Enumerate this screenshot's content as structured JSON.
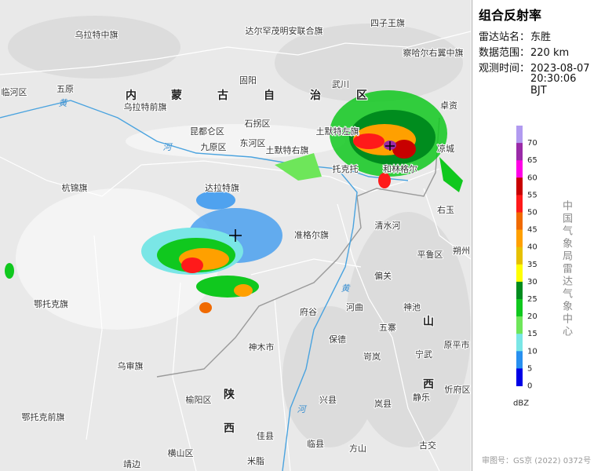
{
  "sidebar": {
    "title": "组合反射率",
    "info": [
      {
        "label": "雷达站名：",
        "value": "东胜"
      },
      {
        "label": "数据范围：",
        "value": "220 km"
      },
      {
        "label": "观测时间：",
        "value": "2023-08-07",
        "value2": "20:30:06 BJT"
      }
    ]
  },
  "legend": {
    "ticks": [
      70,
      65,
      60,
      55,
      50,
      45,
      40,
      35,
      30,
      25,
      20,
      15,
      10,
      5,
      0
    ],
    "colors": [
      "#b19af0",
      "#9a2aa8",
      "#ff00e6",
      "#c80000",
      "#ff1a1a",
      "#f06a00",
      "#ffa000",
      "#e6c000",
      "#ffff00",
      "#008c1e",
      "#10c81e",
      "#6ee65a",
      "#7ae6e6",
      "#2890f0",
      "#0000e6"
    ],
    "unit": "dBZ"
  },
  "credit": "中国气象局雷达气象中心",
  "footer": "审图号：GS京 (2022) 0372号",
  "map_labels": [
    "乌拉特中旗",
    "达尔罕茂明安联合旗",
    "四子王旗",
    "察哈尔右翼中旗",
    "临河区",
    "五原",
    "固阳",
    "武川",
    "卓资",
    "乌拉特前旗",
    "内",
    "蒙",
    "古",
    "自",
    "治",
    "区",
    "石拐区",
    "昆都仑区",
    "九原区",
    "东河区",
    "土默特右旗",
    "土默特左旗",
    "托克托",
    "和林格尔",
    "凉城",
    "杭锦旗",
    "达拉特旗",
    "右玉",
    "准格尔旗",
    "清水河",
    "平鲁区",
    "朔州",
    "偏关",
    "鄂托克旗",
    "府谷",
    "河曲",
    "神池",
    "五寨",
    "原平市",
    "保德",
    "神木市",
    "岢岚",
    "宁武",
    "山",
    "西",
    "乌审旗",
    "榆阳区",
    "陕",
    "西",
    "兴县",
    "岚县",
    "静乐",
    "忻府区",
    "鄂托克前旗",
    "佳县",
    "临县",
    "方山",
    "古交",
    "横山区",
    "米脂",
    "靖边",
    "黄",
    "河",
    "黄",
    "河"
  ]
}
